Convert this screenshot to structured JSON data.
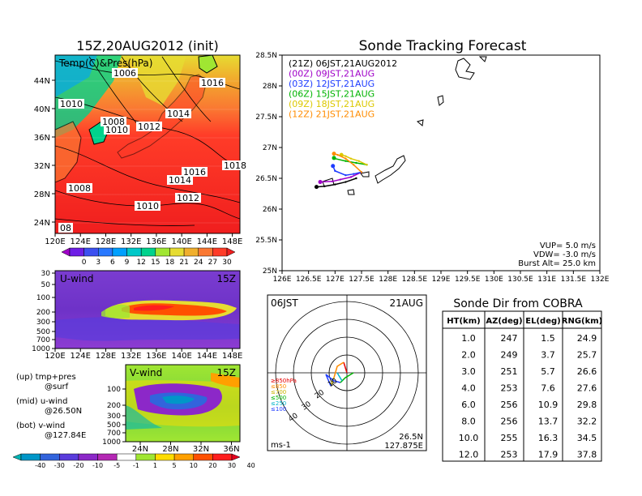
{
  "left_map": {
    "title": "15Z,20AUG2012 (init)",
    "label": "Temp(C)&Pres(hPa)",
    "x_ticks": [
      "120E",
      "124E",
      "128E",
      "132E",
      "136E",
      "140E",
      "144E",
      "148E"
    ],
    "y_ticks": [
      "24N",
      "28N",
      "32N",
      "36N",
      "40N",
      "44N"
    ],
    "isobar_labels": [
      "1006",
      "1016",
      "1010",
      "1008",
      "1010",
      "1012",
      "1014",
      "1016",
      "1018",
      "1014",
      "1012",
      "1008",
      "1010",
      "08"
    ],
    "colorbar_ticks": [
      "0",
      "3",
      "6",
      "9",
      "12",
      "15",
      "18",
      "21",
      "24",
      "27",
      "30"
    ],
    "colorbar_colors": [
      "#a000c8",
      "#6e1ee6",
      "#3c50f0",
      "#2878ff",
      "#00a0ff",
      "#00c8c8",
      "#00d28c",
      "#a0e632",
      "#e6dc32",
      "#f0af2d",
      "#fa7832",
      "#ff3c28",
      "#f01e1e"
    ]
  },
  "u_panel": {
    "label": "U-wind",
    "time": "15Z",
    "x_ticks": [
      "120E",
      "124E",
      "128E",
      "132E",
      "136E",
      "140E",
      "144E",
      "148E"
    ],
    "y_ticks": [
      "30",
      "50",
      "100",
      "200",
      "300",
      "500",
      "700",
      "1000"
    ]
  },
  "v_panel": {
    "label": "V-wind",
    "time": "15Z",
    "x_ticks": [
      "24N",
      "28N",
      "32N",
      "36N"
    ],
    "y_ticks": [
      "100",
      "200",
      "300",
      "500",
      "700",
      "1000"
    ]
  },
  "legend_notes": [
    {
      "line1": "(up) tmp+pres",
      "line2": "@surf"
    },
    {
      "line1": "(mid) u-wind",
      "line2": "@26.50N"
    },
    {
      "line1": "(bot) v-wind",
      "line2": "@127.84E"
    }
  ],
  "wind_colorbar": {
    "ticks": [
      "-40",
      "-30",
      "-20",
      "-10",
      "-5",
      "-1",
      "1",
      "5",
      "10",
      "20",
      "30",
      "40"
    ],
    "colors": [
      "#00b4b4",
      "#0096c8",
      "#3264dc",
      "#5a3cdc",
      "#8c28c8",
      "#b428b4",
      "#ffffff",
      "#a0e632",
      "#ffdc00",
      "#ffa000",
      "#ff5000",
      "#ff1e1e",
      "#e6001e"
    ]
  },
  "tracking": {
    "title": "Sonde Tracking Forecast",
    "legend": [
      {
        "text": "(21Z) 06JST,21AUG2012",
        "color": "#000000"
      },
      {
        "text": "(00Z) 09JST,21AUG",
        "color": "#a000c8"
      },
      {
        "text": "(03Z) 12JST,21AUG",
        "color": "#1e3cff"
      },
      {
        "text": "(06Z) 15JST,21AUG",
        "color": "#00b400"
      },
      {
        "text": "(09Z) 18JST,21AUG",
        "color": "#dcc800"
      },
      {
        "text": "(12Z) 21JST,21AUG",
        "color": "#ff8c00"
      }
    ],
    "x_ticks": [
      "126E",
      "126.5E",
      "127E",
      "127.5E",
      "128E",
      "128.5E",
      "129E",
      "129.5E",
      "130E",
      "130.5E",
      "131E",
      "131.5E",
      "132E"
    ],
    "y_ticks": [
      "25N",
      "25.5N",
      "26N",
      "26.5N",
      "27N",
      "27.5N",
      "28N",
      "28.5N"
    ],
    "info": [
      "VUP= 5.0 m/s",
      "VDW= -3.0 m/s",
      "Burst Alt= 25.0 km"
    ]
  },
  "chart_data": {
    "type": "line",
    "title": "Sonde Tracking Forecast",
    "xlim": [
      126,
      132
    ],
    "ylim": [
      25,
      28.5
    ],
    "series": [
      {
        "name": "(21Z) 06JST,21AUG2012",
        "x": [
          127.4,
          127.2,
          127.0,
          126.8,
          126.65
        ],
        "y": [
          26.5,
          26.44,
          26.4,
          26.37,
          26.36
        ]
      },
      {
        "name": "(00Z) 09JST,21AUG",
        "x": [
          127.5,
          127.3,
          127.1,
          126.95,
          126.72
        ],
        "y": [
          26.6,
          26.52,
          26.48,
          26.45,
          26.44
        ]
      },
      {
        "name": "(03Z) 12JST,21AUG",
        "x": [
          127.5,
          127.35,
          127.2,
          127.0,
          126.96
        ],
        "y": [
          26.6,
          26.57,
          26.55,
          26.62,
          26.7
        ]
      },
      {
        "name": "(06Z) 15JST,21AUG",
        "x": [
          127.6,
          127.4,
          127.2,
          127.0,
          126.98
        ],
        "y": [
          26.72,
          26.75,
          26.78,
          26.82,
          26.83
        ]
      },
      {
        "name": "(09Z) 18JST,21AUG",
        "x": [
          127.6,
          127.45,
          127.3,
          127.2,
          127.12
        ],
        "y": [
          26.72,
          26.78,
          26.82,
          26.86,
          26.88
        ]
      },
      {
        "name": "(12Z) 21JST,21AUG",
        "x": [
          127.5,
          127.35,
          127.2,
          127.05,
          126.98
        ],
        "y": [
          26.6,
          26.72,
          26.82,
          26.88,
          26.9
        ]
      }
    ]
  },
  "polar": {
    "time": "06JST",
    "date": "21AUG",
    "level_labels": [
      {
        "text": "≥850hPa",
        "color": "#e60000"
      },
      {
        "text": "≤850",
        "color": "#ff8c00"
      },
      {
        "text": "≤700",
        "color": "#c8b400"
      },
      {
        "text": "≤500",
        "color": "#00b400"
      },
      {
        "text": "≤250",
        "color": "#00b4c8"
      },
      {
        "text": "≤100",
        "color": "#1e3cff"
      }
    ],
    "ring_labels": [
      "10",
      "20",
      "30",
      "40"
    ],
    "unit": "ms-1",
    "lat": "26.5N",
    "lon": "127.875E"
  },
  "cobra_table": {
    "title": "Sonde Dir from COBRA",
    "headers": [
      "HT(km)",
      "AZ(deg)",
      "EL(deg)",
      "RNG(km)"
    ],
    "rows": [
      [
        "1.0",
        "247",
        "1.5",
        "24.9"
      ],
      [
        "2.0",
        "249",
        "3.7",
        "25.7"
      ],
      [
        "3.0",
        "251",
        "5.7",
        "26.6"
      ],
      [
        "4.0",
        "253",
        "7.6",
        "27.6"
      ],
      [
        "6.0",
        "256",
        "10.9",
        "29.8"
      ],
      [
        "8.0",
        "256",
        "13.7",
        "32.2"
      ],
      [
        "10.0",
        "255",
        "16.3",
        "34.5"
      ],
      [
        "12.0",
        "253",
        "17.9",
        "37.8"
      ]
    ]
  }
}
